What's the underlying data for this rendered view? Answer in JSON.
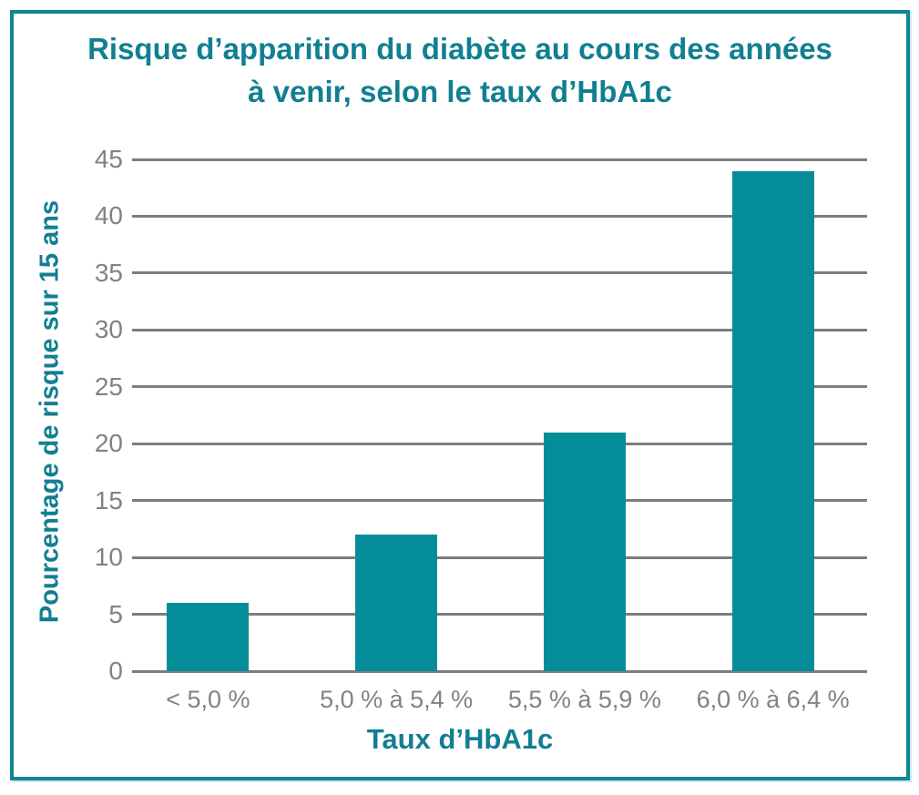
{
  "title": {
    "line1": "Risque d’apparition du diabète au cours des années",
    "line2": "à venir, selon le taux d’HbA1c"
  },
  "chart_data": {
    "type": "bar",
    "title": "Risque d’apparition du diabète au cours des années à venir, selon le taux d’HbA1c",
    "categories": [
      "< 5,0 %",
      "5,0 % à 5,4 %",
      "5,5 % à 5,9 %",
      "6,0 % à 6,4 %"
    ],
    "values": [
      6,
      12,
      21,
      44
    ],
    "xlabel": "Taux d’HbA1c",
    "ylabel": "Pourcentage de risque sur 15 ans",
    "ylim": [
      0,
      45
    ],
    "ytick_step": 5,
    "yticks": [
      0,
      5,
      10,
      15,
      20,
      25,
      30,
      35,
      40,
      45
    ],
    "grid": true,
    "legend": "none"
  },
  "colors": {
    "accent": "#117f92",
    "bar": "#048d99",
    "border": "#0d8796",
    "grid": "#7b7d7f",
    "tick_label": "#808285",
    "background": "#ffffff"
  }
}
